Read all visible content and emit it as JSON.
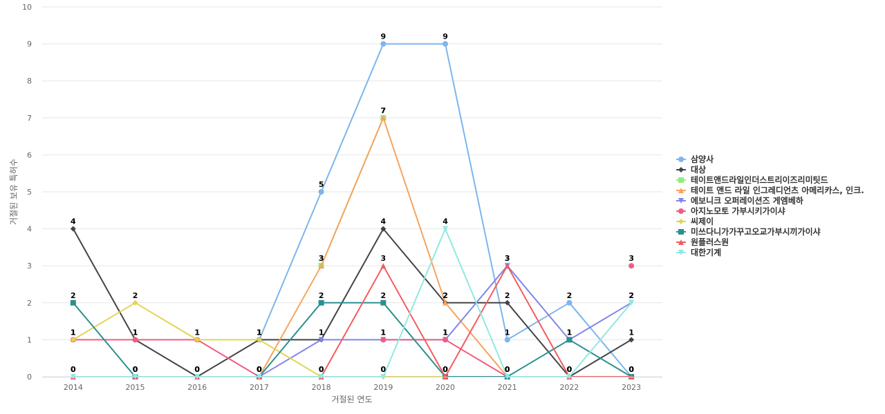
{
  "chart_data": {
    "type": "line",
    "xlabel": "거절된 연도",
    "ylabel": "거절된 보유 특허수",
    "x": [
      "2014",
      "2015",
      "2016",
      "2017",
      "2018",
      "2019",
      "2020",
      "2021",
      "2022",
      "2023"
    ],
    "yticks": [
      "0",
      "1",
      "2",
      "3",
      "4",
      "5",
      "6",
      "7",
      "8",
      "9",
      "10"
    ],
    "ylim": [
      0,
      10
    ],
    "grid": true,
    "legend_position": "right",
    "series": [
      {
        "name": "삼양사",
        "color": "#7cb5ec",
        "marker": "circle",
        "values": [
          null,
          null,
          null,
          1,
          5,
          9,
          9,
          1,
          2,
          0
        ]
      },
      {
        "name": "대상",
        "color": "#434348",
        "marker": "diamond",
        "values": [
          4,
          1,
          0,
          1,
          1,
          4,
          2,
          2,
          0,
          1
        ]
      },
      {
        "name": "테이트앤드라일인더스트리이즈리미팃드",
        "color": "#90ed7d",
        "marker": "square",
        "values": [
          null,
          null,
          null,
          null,
          3,
          7,
          null,
          null,
          null,
          null
        ]
      },
      {
        "name": "테이트 앤드 라일 인그레디언츠 아메리카스, 인크.",
        "color": "#f7a35c",
        "marker": "triangle",
        "values": [
          null,
          null,
          null,
          0,
          3,
          7,
          2,
          0,
          null,
          null
        ]
      },
      {
        "name": "에보니크 오퍼레이션즈 게엠베하",
        "color": "#8085e9",
        "marker": "triangle-down",
        "values": [
          null,
          null,
          null,
          0,
          1,
          1,
          1,
          3,
          1,
          2
        ]
      },
      {
        "name": "아지노모토 가부시키가이샤",
        "color": "#f15c80",
        "marker": "circle",
        "values": [
          1,
          1,
          1,
          0,
          null,
          1,
          1,
          0,
          null,
          3
        ]
      },
      {
        "name": "씨제이",
        "color": "#e4d354",
        "marker": "diamond",
        "values": [
          1,
          2,
          1,
          1,
          0,
          0,
          0,
          null,
          null,
          null
        ]
      },
      {
        "name": "미쓰다니가가꾸고오교가부시끼가이샤",
        "color": "#2b908f",
        "marker": "square",
        "values": [
          2,
          0,
          null,
          0,
          2,
          2,
          0,
          0,
          1,
          0
        ]
      },
      {
        "name": "원플러스원",
        "color": "#f45b5b",
        "marker": "triangle",
        "values": [
          0,
          0,
          0,
          0,
          0,
          3,
          0,
          3,
          0,
          0
        ]
      },
      {
        "name": "대한기계",
        "color": "#91e8e1",
        "marker": "triangle-down",
        "values": [
          0,
          0,
          0,
          0,
          0,
          0,
          4,
          0,
          0,
          2
        ]
      }
    ]
  }
}
